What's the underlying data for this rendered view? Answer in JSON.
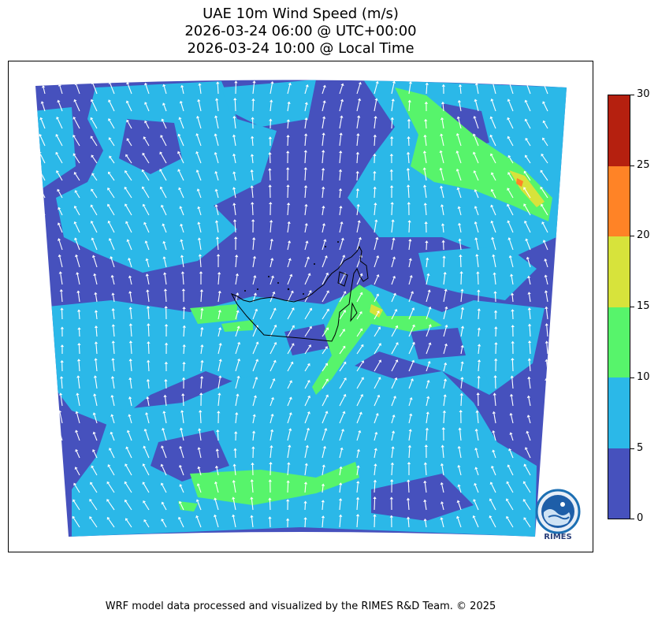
{
  "title": {
    "line1": "UAE 10m Wind Speed (m/s)",
    "line2": "2026-03-24 06:00 @ UTC+00:00",
    "line3": "2026-03-24 10:00 @ Local Time"
  },
  "colorbar": {
    "ticks": [
      "0",
      "5",
      "10",
      "15",
      "20",
      "25",
      "30"
    ],
    "bins": [
      {
        "range": "0-5",
        "color": "#4651bd"
      },
      {
        "range": "5-10",
        "color": "#2bb8e8"
      },
      {
        "range": "10-15",
        "color": "#57f46b"
      },
      {
        "range": "15-20",
        "color": "#d7e33b"
      },
      {
        "range": "20-25",
        "color": "#ff8326"
      },
      {
        "range": "25-30",
        "color": "#b5200f"
      }
    ]
  },
  "map": {
    "land_color": "#4651bd",
    "arrow_color": "#ffffff",
    "border_color": "#000000"
  },
  "logo": {
    "text": "RIMES"
  },
  "credit": "WRF model data processed and visualized by the RIMES R&D Team. © 2025"
}
